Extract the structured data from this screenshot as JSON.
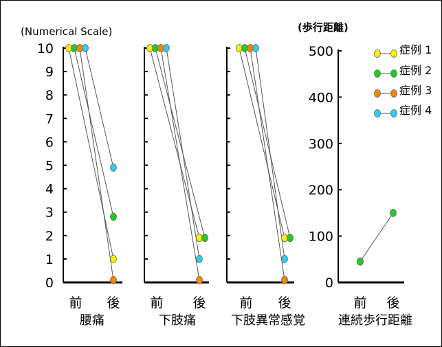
{
  "scale_note": "(Numerical  Scale)",
  "walk_title": "(歩行距離)",
  "colors": {
    "case1": "#ffee00",
    "case2": "#22cc22",
    "case3": "#ee8800",
    "case4": "#33ccee"
  },
  "chart_data": [
    {
      "type": "line",
      "xlabel": "腰痛",
      "categories": [
        "前",
        "後"
      ],
      "ylim": [
        0,
        10
      ],
      "yticks": [
        0,
        1,
        2,
        3,
        4,
        5,
        6,
        7,
        8,
        9,
        10
      ],
      "series": [
        {
          "name": "症例 1",
          "values": [
            10,
            1
          ]
        },
        {
          "name": "症例 2",
          "values": [
            10,
            2.8
          ]
        },
        {
          "name": "症例 3",
          "values": [
            10,
            0.1
          ]
        },
        {
          "name": "症例 4",
          "values": [
            10,
            4.9
          ]
        }
      ]
    },
    {
      "type": "line",
      "xlabel": "下肢痛",
      "categories": [
        "前",
        "後"
      ],
      "ylim": [
        0,
        10
      ],
      "series": [
        {
          "name": "症例 1",
          "values": [
            10,
            1.9
          ]
        },
        {
          "name": "症例 2",
          "values": [
            10,
            1.9
          ]
        },
        {
          "name": "症例 3",
          "values": [
            10,
            0.1
          ]
        },
        {
          "name": "症例 4",
          "values": [
            10,
            1
          ]
        }
      ]
    },
    {
      "type": "line",
      "xlabel": "下肢異常感覚",
      "categories": [
        "前",
        "後"
      ],
      "ylim": [
        0,
        10
      ],
      "series": [
        {
          "name": "症例 1",
          "values": [
            10,
            1.9
          ]
        },
        {
          "name": "症例 2",
          "values": [
            10,
            1.9
          ]
        },
        {
          "name": "症例 3",
          "values": [
            10,
            0.1
          ]
        },
        {
          "name": "症例 4",
          "values": [
            10,
            1
          ]
        }
      ]
    },
    {
      "type": "line",
      "xlabel": "連続歩行距離",
      "categories": [
        "前",
        "後"
      ],
      "ylim": [
        0,
        500
      ],
      "yticks": [
        0,
        100,
        200,
        300,
        400,
        500
      ],
      "series": [
        {
          "name": "症例 2",
          "values": [
            45,
            150
          ]
        }
      ]
    }
  ],
  "legend": [
    {
      "label": "症例 1",
      "color": "#ffee00"
    },
    {
      "label": "症例 2",
      "color": "#22cc22"
    },
    {
      "label": "症例 3",
      "color": "#ee8800"
    },
    {
      "label": "症例 4",
      "color": "#33ccee"
    }
  ]
}
